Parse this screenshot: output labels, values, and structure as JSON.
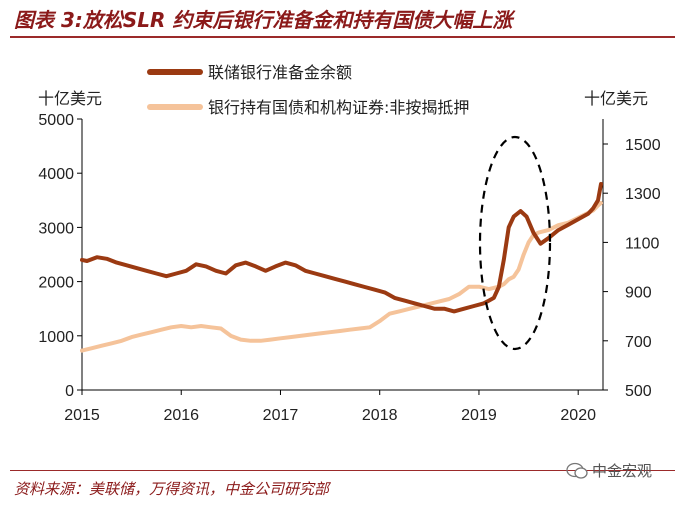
{
  "header": {
    "title": "图表 3:放松SLR 约束后银行准备金和持有国债大幅上涨"
  },
  "footer": {
    "source": "资料来源：美联储，万得资讯，中金公司研究部",
    "watermark": "中金宏观"
  },
  "colors": {
    "series1": "#9b3a12",
    "series2": "#f5c39a",
    "title": "#8b1a1a",
    "annotation": "#000000"
  },
  "chart_data": {
    "type": "line",
    "title": "放松SLR 约束后银行准备金和持有国债大幅上涨",
    "left_axis": {
      "unit": "十亿美元",
      "ylim": [
        0,
        5000
      ],
      "ticks": [
        0,
        1000,
        2000,
        3000,
        4000,
        5000
      ]
    },
    "right_axis": {
      "unit": "十亿美元",
      "ylim": [
        500,
        1600
      ],
      "ticks": [
        500,
        700,
        900,
        1100,
        1300,
        1500
      ]
    },
    "x_axis": {
      "xlim": [
        2015,
        2020.25
      ],
      "ticks": [
        "2015",
        "2016",
        "2017",
        "2018",
        "2019",
        "2020"
      ]
    },
    "legend_position": "top-center",
    "annotation": "dashed ellipse highlighting 2019 surge",
    "series": [
      {
        "name": "联储银行准备金余额",
        "axis": "left",
        "x": [
          2015.0,
          2015.05,
          2015.15,
          2015.25,
          2015.35,
          2015.45,
          2015.55,
          2015.65,
          2015.75,
          2015.85,
          2015.95,
          2016.05,
          2016.15,
          2016.25,
          2016.35,
          2016.45,
          2016.55,
          2016.65,
          2016.75,
          2016.85,
          2016.95,
          2017.05,
          2017.15,
          2017.25,
          2017.35,
          2017.45,
          2017.55,
          2017.65,
          2017.75,
          2017.85,
          2017.95,
          2018.05,
          2018.15,
          2018.25,
          2018.35,
          2018.45,
          2018.55,
          2018.65,
          2018.75,
          2018.85,
          2018.95,
          2019.05,
          2019.1,
          2019.15,
          2019.2,
          2019.25,
          2019.3,
          2019.35,
          2019.42,
          2019.48,
          2019.55,
          2019.62,
          2019.7,
          2019.8,
          2019.9,
          2020.0,
          2020.1,
          2020.15,
          2020.2,
          2020.23
        ],
        "values": [
          2400,
          2380,
          2450,
          2420,
          2350,
          2300,
          2250,
          2200,
          2150,
          2100,
          2150,
          2200,
          2320,
          2280,
          2200,
          2150,
          2300,
          2350,
          2280,
          2200,
          2280,
          2350,
          2300,
          2200,
          2150,
          2100,
          2050,
          2000,
          1950,
          1900,
          1850,
          1800,
          1700,
          1650,
          1600,
          1550,
          1500,
          1500,
          1450,
          1500,
          1550,
          1600,
          1650,
          1700,
          1900,
          2400,
          3000,
          3200,
          3300,
          3200,
          2900,
          2700,
          2800,
          2950,
          3050,
          3150,
          3250,
          3350,
          3500,
          3800
        ]
      },
      {
        "name": "银行持有国债和机构证券:非按揭抵押",
        "axis": "right",
        "x": [
          2015.0,
          2015.1,
          2015.2,
          2015.3,
          2015.4,
          2015.5,
          2015.6,
          2015.7,
          2015.8,
          2015.9,
          2016.0,
          2016.1,
          2016.2,
          2016.3,
          2016.4,
          2016.5,
          2016.6,
          2016.7,
          2016.8,
          2016.9,
          2017.0,
          2017.1,
          2017.2,
          2017.3,
          2017.4,
          2017.5,
          2017.6,
          2017.7,
          2017.8,
          2017.9,
          2018.0,
          2018.1,
          2018.2,
          2018.3,
          2018.4,
          2018.5,
          2018.6,
          2018.7,
          2018.8,
          2018.9,
          2019.0,
          2019.1,
          2019.2,
          2019.25,
          2019.3,
          2019.35,
          2019.4,
          2019.45,
          2019.5,
          2019.55,
          2019.6,
          2019.7,
          2019.8,
          2019.9,
          2020.0,
          2020.1,
          2020.15,
          2020.2,
          2020.23
        ],
        "values": [
          660,
          670,
          680,
          690,
          700,
          715,
          725,
          735,
          745,
          755,
          760,
          755,
          760,
          755,
          750,
          720,
          705,
          700,
          700,
          705,
          710,
          715,
          720,
          725,
          730,
          735,
          740,
          745,
          750,
          755,
          780,
          810,
          820,
          830,
          840,
          850,
          860,
          870,
          890,
          920,
          920,
          910,
          920,
          930,
          950,
          960,
          990,
          1050,
          1100,
          1130,
          1140,
          1150,
          1170,
          1180,
          1200,
          1220,
          1230,
          1250,
          1260
        ]
      }
    ]
  }
}
